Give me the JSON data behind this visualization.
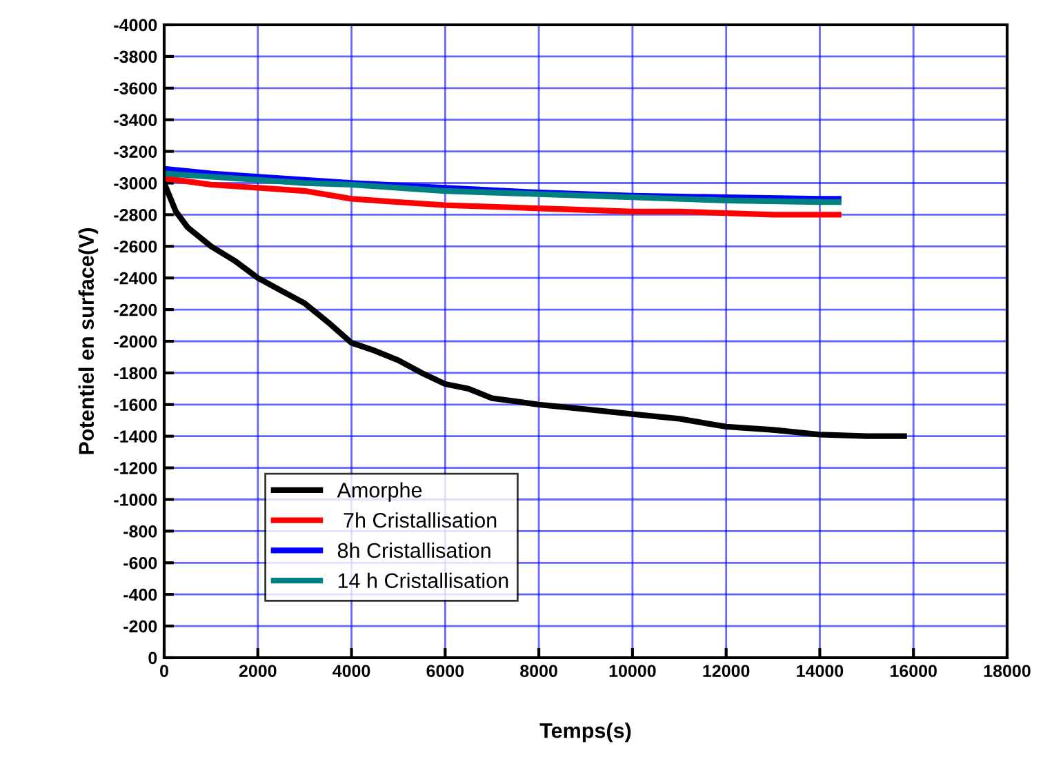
{
  "chart_data": {
    "type": "line",
    "xlabel": "Temps(s)",
    "ylabel": "Potentiel en surface(V)",
    "xlim": [
      0,
      18000
    ],
    "xticks": [
      0,
      2000,
      4000,
      6000,
      8000,
      10000,
      12000,
      14000,
      16000,
      18000
    ],
    "ylim": [
      0,
      -4000
    ],
    "yticks": [
      0,
      -200,
      -400,
      -600,
      -800,
      -1000,
      -1200,
      -1400,
      -1600,
      -1800,
      -2000,
      -2200,
      -2400,
      -2600,
      -2800,
      -3000,
      -3200,
      -3400,
      -3600,
      -3800,
      -4000
    ],
    "grid": true,
    "legend": "bottom left",
    "line_style": "solid",
    "marker": "none",
    "series": [
      {
        "name": "Amorphe",
        "color": "#000000",
        "x": [
          0,
          250,
          500,
          1000,
          1500,
          2000,
          2500,
          3000,
          3500,
          4000,
          4500,
          5000,
          5500,
          6000,
          6500,
          7000,
          7500,
          8000,
          9000,
          10000,
          11000,
          12000,
          13000,
          14000,
          15000,
          15800
        ],
        "values": [
          -3000,
          -2820,
          -2720,
          -2600,
          -2510,
          -2400,
          -2320,
          -2240,
          -2120,
          -1990,
          -1940,
          -1880,
          -1800,
          -1730,
          -1700,
          -1640,
          -1620,
          -1600,
          -1570,
          -1540,
          -1510,
          -1460,
          -1440,
          -1410,
          -1400,
          -1400
        ]
      },
      {
        "name": " 7h Cristallisation",
        "color": "#ff0000",
        "x": [
          0,
          1000,
          2000,
          3000,
          4000,
          5000,
          6000,
          7000,
          8000,
          9000,
          10000,
          11000,
          12000,
          13000,
          14000,
          14400
        ],
        "values": [
          -3030,
          -2990,
          -2970,
          -2950,
          -2900,
          -2880,
          -2860,
          -2850,
          -2840,
          -2830,
          -2820,
          -2820,
          -2810,
          -2800,
          -2800,
          -2800
        ]
      },
      {
        "name": "8h Cristallisation",
        "color": "#0000ff",
        "x": [
          0,
          1000,
          2000,
          3000,
          4000,
          6000,
          8000,
          10000,
          12000,
          14000,
          14400
        ],
        "values": [
          -3090,
          -3060,
          -3040,
          -3020,
          -3000,
          -2970,
          -2940,
          -2920,
          -2910,
          -2900,
          -2900
        ]
      },
      {
        "name": "14 h Cristallisation",
        "color": "#008080",
        "x": [
          0,
          1000,
          2000,
          3000,
          4000,
          6000,
          8000,
          10000,
          12000,
          14000,
          14400
        ],
        "values": [
          -3060,
          -3040,
          -3020,
          -3000,
          -2990,
          -2950,
          -2930,
          -2910,
          -2890,
          -2880,
          -2880
        ]
      }
    ]
  }
}
